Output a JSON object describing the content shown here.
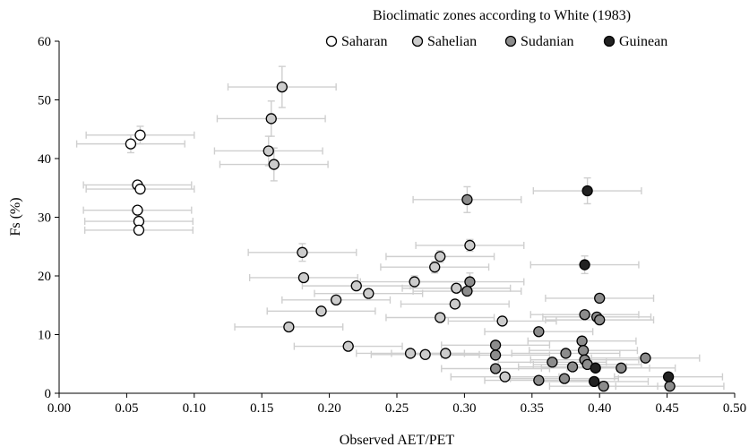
{
  "chart_data": {
    "type": "scatter",
    "title": "Bioclimatic zones according to White (1983)",
    "xlabel": "Observed AET/PET",
    "ylabel": "Fs (%)",
    "xlim": [
      0,
      0.5
    ],
    "ylim": [
      0,
      60
    ],
    "x_ticks": [
      "0.00",
      "0.05",
      "0.10",
      "0.15",
      "0.20",
      "0.25",
      "0.30",
      "0.35",
      "0.40",
      "0.45",
      "0.50"
    ],
    "y_ticks": [
      "0",
      "10",
      "20",
      "30",
      "40",
      "50",
      "60"
    ],
    "legend_position": "top",
    "error_bar_color": "#cfcfcf",
    "series": [
      {
        "name": "Saharan",
        "fill": "#ffffff",
        "points": [
          {
            "x": 0.06,
            "y": 44.0,
            "xerr": 0.04,
            "yerr": 1.5
          },
          {
            "x": 0.053,
            "y": 42.5,
            "xerr": 0.04,
            "yerr": 1.5
          },
          {
            "x": 0.058,
            "y": 35.5,
            "xerr": 0.04,
            "yerr": 0
          },
          {
            "x": 0.06,
            "y": 34.8,
            "xerr": 0.04,
            "yerr": 0
          },
          {
            "x": 0.058,
            "y": 31.2,
            "xerr": 0.04,
            "yerr": 0
          },
          {
            "x": 0.059,
            "y": 29.3,
            "xerr": 0.04,
            "yerr": 0
          },
          {
            "x": 0.059,
            "y": 27.8,
            "xerr": 0.04,
            "yerr": 0
          }
        ]
      },
      {
        "name": "Sahelian",
        "fill": "#cccccc",
        "points": [
          {
            "x": 0.165,
            "y": 52.2,
            "xerr": 0.04,
            "yerr": 3.5
          },
          {
            "x": 0.157,
            "y": 46.8,
            "xerr": 0.04,
            "yerr": 3.0
          },
          {
            "x": 0.155,
            "y": 41.3,
            "xerr": 0.04,
            "yerr": 2.5
          },
          {
            "x": 0.159,
            "y": 39.0,
            "xerr": 0.04,
            "yerr": 2.8
          },
          {
            "x": 0.18,
            "y": 24.0,
            "xerr": 0.04,
            "yerr": 1.5
          },
          {
            "x": 0.181,
            "y": 19.7,
            "xerr": 0.04,
            "yerr": 0
          },
          {
            "x": 0.17,
            "y": 11.3,
            "xerr": 0.04,
            "yerr": 0
          },
          {
            "x": 0.194,
            "y": 14.0,
            "xerr": 0.04,
            "yerr": 0
          },
          {
            "x": 0.205,
            "y": 15.9,
            "xerr": 0.04,
            "yerr": 0
          },
          {
            "x": 0.22,
            "y": 18.3,
            "xerr": 0.04,
            "yerr": 0
          },
          {
            "x": 0.229,
            "y": 17.0,
            "xerr": 0.04,
            "yerr": 0
          },
          {
            "x": 0.214,
            "y": 8.0,
            "xerr": 0.04,
            "yerr": 0
          },
          {
            "x": 0.26,
            "y": 6.8,
            "xerr": 0.04,
            "yerr": 0
          },
          {
            "x": 0.271,
            "y": 6.6,
            "xerr": 0.04,
            "yerr": 0
          },
          {
            "x": 0.286,
            "y": 6.8,
            "xerr": 0.04,
            "yerr": 0
          },
          {
            "x": 0.263,
            "y": 19.0,
            "xerr": 0.04,
            "yerr": 1.0
          },
          {
            "x": 0.278,
            "y": 21.5,
            "xerr": 0.04,
            "yerr": 1.0
          },
          {
            "x": 0.282,
            "y": 23.3,
            "xerr": 0.04,
            "yerr": 1.0
          },
          {
            "x": 0.282,
            "y": 12.9,
            "xerr": 0.04,
            "yerr": 0
          },
          {
            "x": 0.293,
            "y": 15.2,
            "xerr": 0.04,
            "yerr": 0
          },
          {
            "x": 0.294,
            "y": 17.9,
            "xerr": 0.04,
            "yerr": 0
          },
          {
            "x": 0.304,
            "y": 25.2,
            "xerr": 0.04,
            "yerr": 1.0
          },
          {
            "x": 0.328,
            "y": 12.3,
            "xerr": 0.04,
            "yerr": 0
          },
          {
            "x": 0.33,
            "y": 2.8,
            "xerr": 0.04,
            "yerr": 0
          }
        ]
      },
      {
        "name": "Sudanian",
        "fill": "#8c8c8c",
        "points": [
          {
            "x": 0.302,
            "y": 33.0,
            "xerr": 0.04,
            "yerr": 2.2
          },
          {
            "x": 0.304,
            "y": 19.0,
            "xerr": 0.04,
            "yerr": 1.5
          },
          {
            "x": 0.302,
            "y": 17.4,
            "xerr": 0.04,
            "yerr": 0
          },
          {
            "x": 0.323,
            "y": 8.2,
            "xerr": 0.04,
            "yerr": 0
          },
          {
            "x": 0.323,
            "y": 6.5,
            "xerr": 0.04,
            "yerr": 0
          },
          {
            "x": 0.323,
            "y": 4.2,
            "xerr": 0.04,
            "yerr": 0
          },
          {
            "x": 0.355,
            "y": 10.5,
            "xerr": 0.04,
            "yerr": 0
          },
          {
            "x": 0.355,
            "y": 2.2,
            "xerr": 0.04,
            "yerr": 0
          },
          {
            "x": 0.365,
            "y": 5.3,
            "xerr": 0.04,
            "yerr": 0
          },
          {
            "x": 0.374,
            "y": 2.5,
            "xerr": 0.04,
            "yerr": 0
          },
          {
            "x": 0.375,
            "y": 6.8,
            "xerr": 0.04,
            "yerr": 0
          },
          {
            "x": 0.38,
            "y": 4.5,
            "xerr": 0.04,
            "yerr": 0
          },
          {
            "x": 0.387,
            "y": 8.9,
            "xerr": 0.04,
            "yerr": 0
          },
          {
            "x": 0.388,
            "y": 7.3,
            "xerr": 0.04,
            "yerr": 0
          },
          {
            "x": 0.389,
            "y": 13.4,
            "xerr": 0.04,
            "yerr": 0
          },
          {
            "x": 0.389,
            "y": 5.7,
            "xerr": 0.04,
            "yerr": 0
          },
          {
            "x": 0.391,
            "y": 4.9,
            "xerr": 0.04,
            "yerr": 0
          },
          {
            "x": 0.398,
            "y": 13.0,
            "xerr": 0.04,
            "yerr": 0
          },
          {
            "x": 0.4,
            "y": 16.2,
            "xerr": 0.04,
            "yerr": 0
          },
          {
            "x": 0.4,
            "y": 12.5,
            "xerr": 0.04,
            "yerr": 0
          },
          {
            "x": 0.403,
            "y": 1.2,
            "xerr": 0.04,
            "yerr": 0
          },
          {
            "x": 0.416,
            "y": 4.3,
            "xerr": 0.04,
            "yerr": 0
          },
          {
            "x": 0.434,
            "y": 6.0,
            "xerr": 0.04,
            "yerr": 0
          },
          {
            "x": 0.452,
            "y": 1.2,
            "xerr": 0.04,
            "yerr": 0
          }
        ]
      },
      {
        "name": "Guinean",
        "fill": "#222222",
        "points": [
          {
            "x": 0.391,
            "y": 34.5,
            "xerr": 0.04,
            "yerr": 2.2
          },
          {
            "x": 0.389,
            "y": 21.9,
            "xerr": 0.04,
            "yerr": 1.5
          },
          {
            "x": 0.397,
            "y": 4.3,
            "xerr": 0.04,
            "yerr": 0
          },
          {
            "x": 0.396,
            "y": 2.0,
            "xerr": 0.04,
            "yerr": 0
          },
          {
            "x": 0.451,
            "y": 2.8,
            "xerr": 0.04,
            "yerr": 0
          }
        ]
      }
    ]
  }
}
